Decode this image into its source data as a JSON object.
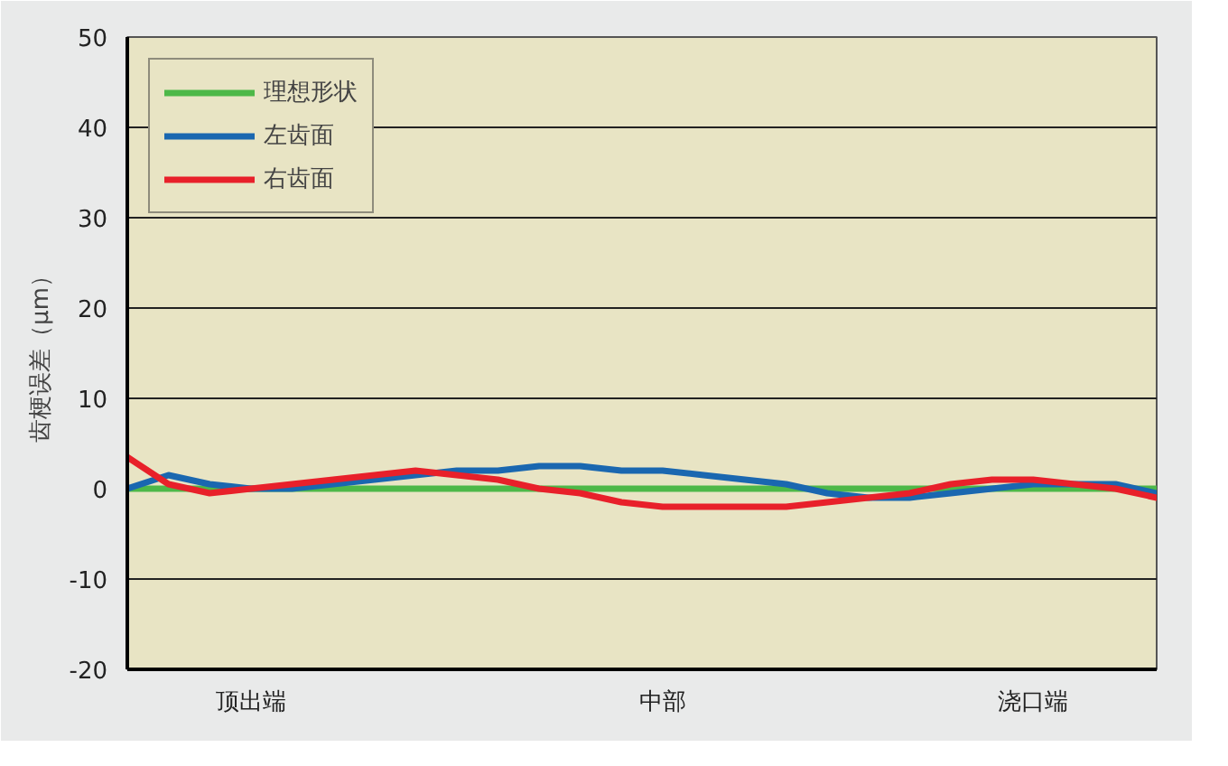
{
  "chart_data": {
    "type": "line",
    "ylabel": "齿梗误差（μm）",
    "ylim": [
      -20,
      50
    ],
    "categories": [
      null,
      null,
      null,
      "顶出端",
      null,
      null,
      null,
      null,
      null,
      null,
      null,
      null,
      null,
      "中部",
      null,
      null,
      null,
      null,
      null,
      null,
      null,
      null,
      "浇口端",
      null,
      null,
      null
    ],
    "yticks": [
      -20,
      -10,
      0,
      10,
      20,
      30,
      40,
      50
    ],
    "grid": "y",
    "legend": "top left",
    "line_style": "solid",
    "marker": "none",
    "series": [
      {
        "name": "理想形状",
        "color": "#4db848",
        "values": [
          0,
          0,
          0,
          0,
          0,
          0,
          0,
          0,
          0,
          0,
          0,
          0,
          0,
          0,
          0,
          0,
          0,
          0,
          0,
          0,
          0,
          0,
          0,
          0,
          0,
          0
        ]
      },
      {
        "name": "左齿面",
        "color": "#1a67b0",
        "values": [
          0,
          1.5,
          0.5,
          0,
          0,
          0.5,
          1,
          1.5,
          2,
          2,
          2.5,
          2.5,
          2,
          2,
          1.5,
          1,
          0.5,
          -0.5,
          -1,
          -1,
          -0.5,
          0,
          0.5,
          0.5,
          0.5,
          -0.5
        ]
      },
      {
        "name": "右齿面",
        "color": "#e8202a",
        "values": [
          3.5,
          0.5,
          -0.5,
          0,
          0.5,
          1,
          1.5,
          2,
          1.5,
          1,
          0,
          -0.5,
          -1.5,
          -2,
          -2,
          -2,
          -2,
          -1.5,
          -1,
          -0.5,
          0.5,
          1,
          1,
          0.5,
          0,
          -1
        ]
      }
    ]
  }
}
